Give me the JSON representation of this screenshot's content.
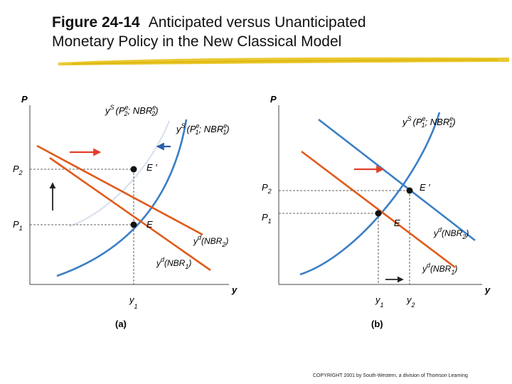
{
  "figure": {
    "number": "Figure 24-14",
    "title_line1": "Anticipated versus Unanticipated",
    "title_line2": "Monetary Policy in the New Classical Model",
    "highlight_color": "#e8c21a"
  },
  "panel_a": {
    "caption": "(a)",
    "y_axis_label": "P",
    "x_axis_label": "y",
    "p2_label": "P",
    "p2_sub": "2",
    "p1_label": "P",
    "p1_sub": "1",
    "y1_label": "y",
    "y1_sub": "1",
    "as2_label": "y",
    "as2_sup": "S",
    "as2_args": "(P",
    "as2_args_sup": "e",
    "as2_args_sub": "2",
    "as2_args_mid": "; NBR",
    "as2_args_sup2": "e",
    "as2_args_sub2": "2",
    "as2_args_end": ")",
    "as1_label": "y",
    "as1_sup": "S",
    "as1_args": "(P",
    "as1_args_sup": "e",
    "as1_args_sub": "1",
    "as1_args_mid": "; NBR",
    "as1_args_sup2": "e",
    "as1_args_sub2": "1",
    "as1_args_end": ")",
    "ad2_label": "y",
    "ad2_sup": "d",
    "ad2_args": "(NBR",
    "ad2_args_sub": "2",
    "ad2_args_end": ")",
    "ad1_label": "y",
    "ad1_sup": "d",
    "ad1_args": "(NBR",
    "ad1_args_sub": "1",
    "ad1_args_end": ")",
    "point_e_label": "E",
    "point_e_prime_label": "E ′"
  },
  "panel_b": {
    "caption": "(b)",
    "y_axis_label": "P",
    "x_axis_label": "y",
    "p2_label": "P",
    "p2_sub": "2",
    "p1_label": "P",
    "p1_sub": "1",
    "y1_label": "y",
    "y1_sub": "1",
    "y2_label": "y",
    "y2_sub": "2",
    "as_label": "y",
    "as_sup": "S",
    "as_args": "(P",
    "as_args_sup": "e",
    "as_args_sub": "1",
    "as_args_mid": "; NBR",
    "as_args_sup2": "e",
    "as_args_sub2": "1",
    "as_args_end": ")",
    "ad2_label": "y",
    "ad2_sup": "d",
    "ad2_args": "(NBR",
    "ad2_args_sub": "2",
    "ad2_args_end": ")",
    "ad1_label": "y",
    "ad1_sup": "d",
    "ad1_args": "(NBR",
    "ad1_args_sub": "1",
    "ad1_args_end": ")",
    "point_e_label": "E",
    "point_e_prime_label": "E ′"
  },
  "colors": {
    "supply_curve": "#3a7fc4",
    "supply_curve_new": "#8aa4c8",
    "demand_curve": "#e05a1a",
    "arrow_red": "#e0402a",
    "arrow_blue": "#2a5fa8",
    "guide_line": "#333333"
  },
  "copyright": "COPYRIGHT 2001 by South-Western, a division of Thomson Learning"
}
